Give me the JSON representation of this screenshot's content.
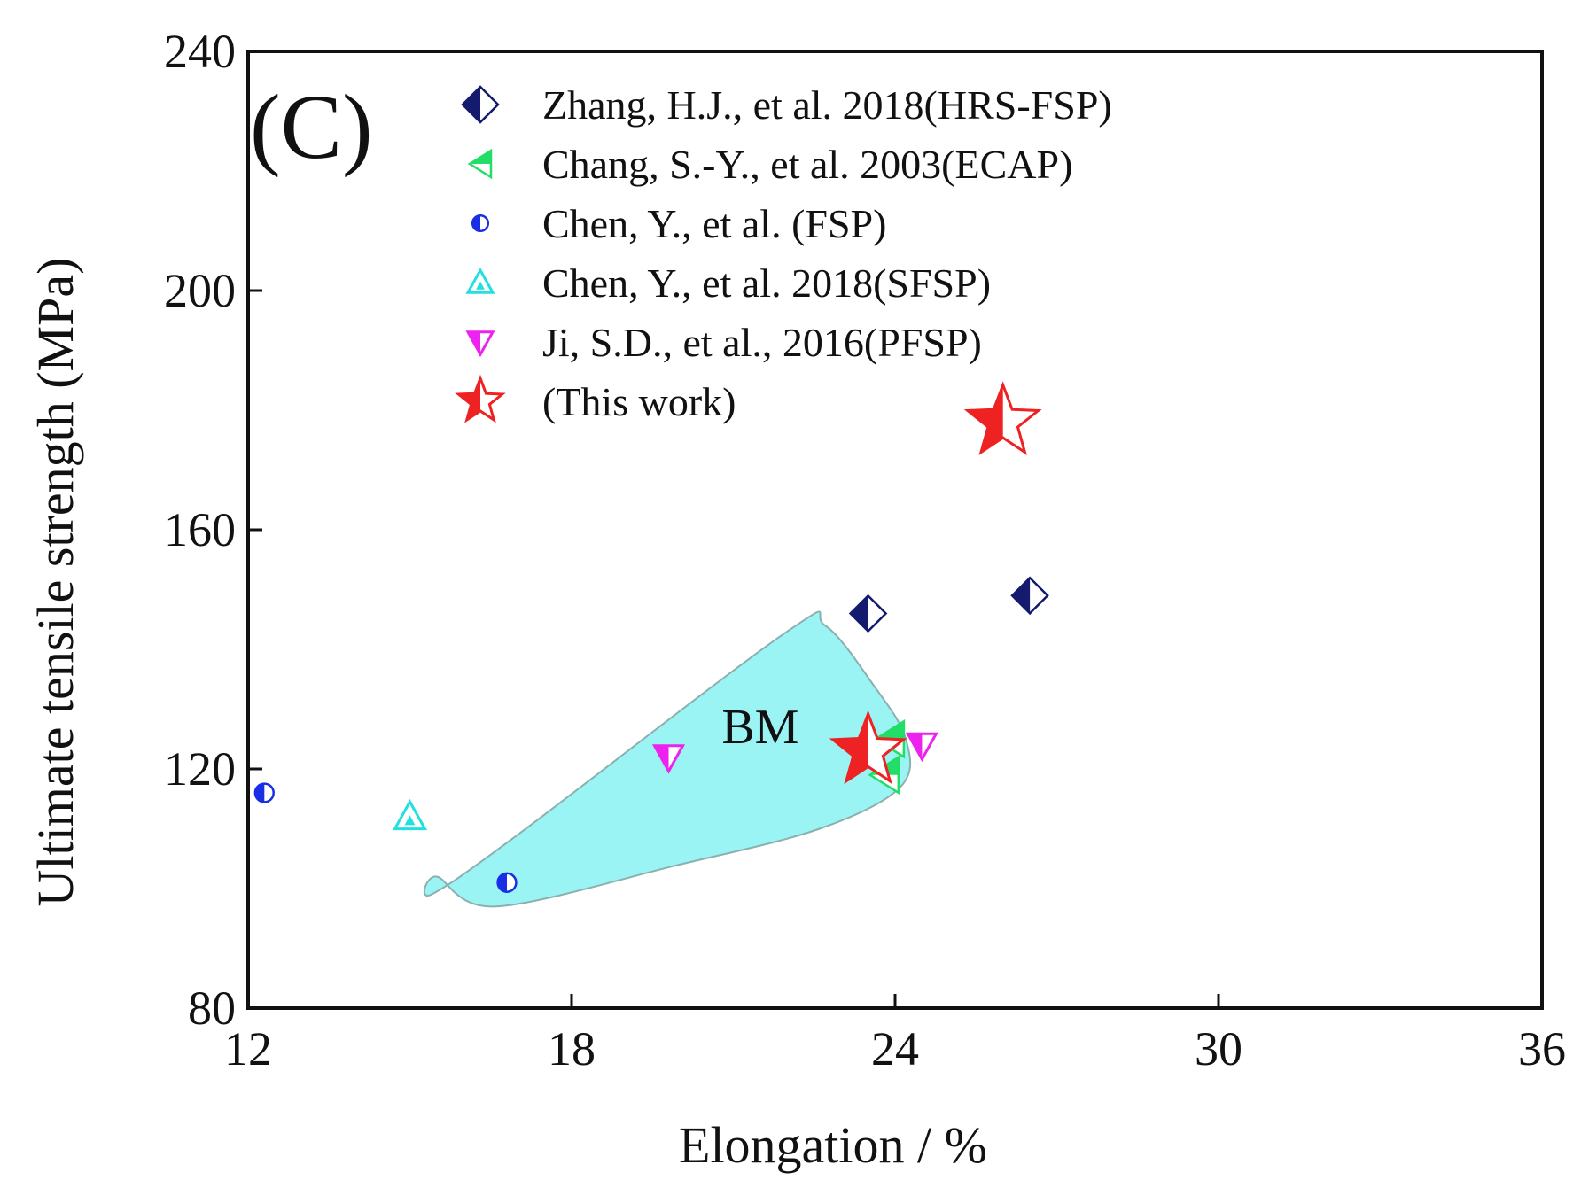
{
  "chart_data": {
    "type": "scatter",
    "panel_label": "(C)",
    "xlabel": "Elongation / %",
    "ylabel": "Ultimate tensile strength (MPa)",
    "xlim": [
      12,
      36
    ],
    "ylim": [
      80,
      240
    ],
    "xticks": [
      12,
      18,
      24,
      30,
      36
    ],
    "yticks": [
      80,
      120,
      160,
      200,
      240
    ],
    "grid": false,
    "legend_position": "top",
    "series": [
      {
        "name": "Zhang, H.J., et al. 2018(HRS-FSP)",
        "marker": "half-diamond",
        "color": "#141a6e",
        "points": [
          [
            23.5,
            146
          ],
          [
            26.5,
            149
          ]
        ]
      },
      {
        "name": "Chang, S.-Y., et al. 2003(ECAP)",
        "marker": "left-triangle",
        "color": "#22dd66",
        "points": [
          [
            23.9,
            125
          ],
          [
            23.8,
            119
          ]
        ]
      },
      {
        "name": "Chen, Y., et al. (FSP)",
        "marker": "half-circle",
        "color": "#1a2ee6",
        "points": [
          [
            12.3,
            116
          ],
          [
            16.8,
            101
          ]
        ]
      },
      {
        "name": "Chen, Y., et al. 2018(SFSP)",
        "marker": "triangle-up",
        "color": "#22e0e0",
        "points": [
          [
            15.0,
            112
          ]
        ]
      },
      {
        "name": "Ji, S.D., et al., 2016(PFSP)",
        "marker": "triangle-down",
        "color": "#ee22ee",
        "points": [
          [
            19.8,
            122
          ],
          [
            24.5,
            124
          ]
        ]
      },
      {
        "name": "(This work)",
        "marker": "half-star",
        "color": "#ee2222",
        "points": [
          [
            26.0,
            178
          ],
          [
            23.5,
            123
          ]
        ]
      }
    ],
    "regions": [
      {
        "label": "BM",
        "fill": "#9af4f4",
        "stroke": "#8ab0b0",
        "outline": [
          [
            15.5,
            102
          ],
          [
            16.6,
            97
          ],
          [
            20.0,
            104
          ],
          [
            22.6,
            110
          ],
          [
            24.1,
            117
          ],
          [
            24.2,
            125
          ],
          [
            23.6,
            134
          ],
          [
            22.7,
            144
          ],
          [
            22.0,
            143
          ],
          [
            17.0,
            109
          ],
          [
            15.4,
            99
          ]
        ],
        "label_at": [
          21.5,
          127
        ]
      }
    ]
  }
}
